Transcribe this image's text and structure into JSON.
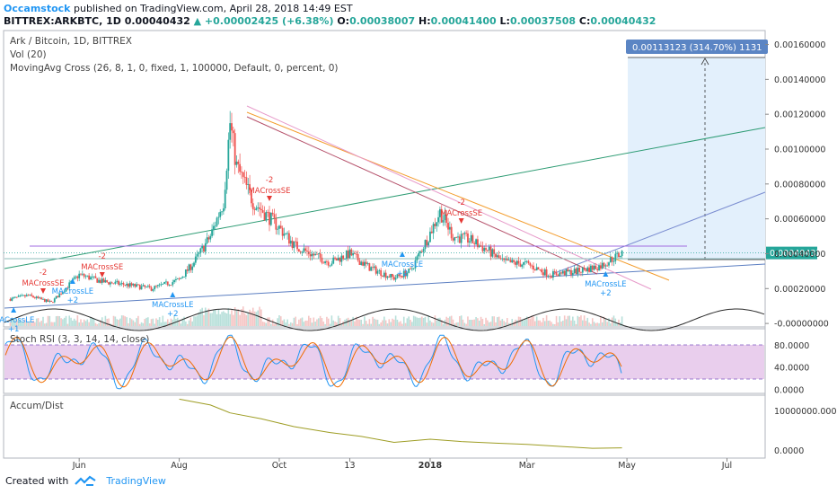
{
  "header": {
    "author": "Occamstock",
    "published": "published on TradingView.com, April 28, 2018 14:49 EST",
    "symbol": "BITTREX:ARKBTC, 1D",
    "last": "0.00040432",
    "change": "▲ +0.00002425 (+6.38%)",
    "o_label": "O:",
    "o": "0.00038007",
    "h_label": "H:",
    "h": "0.00041400",
    "l_label": "L:",
    "l": "0.00037508",
    "c_label": "C:",
    "c": "0.00040432"
  },
  "legends": {
    "main": "Ark / Bitcoin, 1D, BITTREX",
    "vol": "Vol (20)",
    "macross": "MovingAvg Cross (26, 8, 1, 0, fixed, 1, 100000, Default, 0, percent, 0)",
    "stoch": "Stoch RSI (3, 3, 14, 14, close)",
    "accum": "Accum/Dist"
  },
  "measure_label": "0.00113123 (314.70%) 1131",
  "price_badge": "0.00040432",
  "colors": {
    "up": "#26a69a",
    "down": "#ef5350",
    "signal_buy": "#2196f3",
    "signal_sell": "#e53935",
    "stoch_fill": "#e1bee7",
    "accum": "#9e9d24",
    "badge": "#26a69a",
    "measure": "#5b85c4"
  },
  "footer": {
    "created": "Created with",
    "brand": "TradingView"
  },
  "chart_data": [
    {
      "type": "candlestick",
      "title": "Ark / Bitcoin, 1D, BITTREX",
      "x": [
        "2017-04-20",
        "2017-05-01",
        "2017-05-15",
        "2017-06-01",
        "2017-06-15",
        "2017-07-01",
        "2017-07-15",
        "2017-08-01",
        "2017-08-10",
        "2017-08-20",
        "2017-08-28",
        "2017-09-01",
        "2017-09-05",
        "2017-09-15",
        "2017-10-01",
        "2017-10-10",
        "2017-10-20",
        "2017-11-01",
        "2017-11-13",
        "2017-11-25",
        "2017-12-10",
        "2017-12-20",
        "2017-12-31",
        "2018-01-07",
        "2018-01-15",
        "2018-01-25",
        "2018-02-05",
        "2018-02-15",
        "2018-03-01",
        "2018-03-15",
        "2018-04-01",
        "2018-04-15",
        "2018-04-28"
      ],
      "close": [
        0.00014,
        0.00016,
        0.00012,
        0.00028,
        0.00024,
        0.00022,
        0.0002,
        0.00025,
        0.00035,
        0.0005,
        0.0007,
        0.00115,
        0.0009,
        0.0007,
        0.00055,
        0.00045,
        0.0004,
        0.00035,
        0.0004,
        0.00032,
        0.00026,
        0.0003,
        0.0005,
        0.00064,
        0.0005,
        0.00048,
        0.00042,
        0.00035,
        0.00034,
        0.00028,
        0.0003,
        0.00033,
        0.00040432
      ],
      "xaxis_ticks": [
        "Jun",
        "Aug",
        "Oct",
        "13",
        "2018",
        "Mar",
        "May",
        "Jul"
      ],
      "yaxis_ticks": [
        "0.00160000",
        "0.00140000",
        "0.00120000",
        "0.00100000",
        "0.00080000",
        "0.00060000",
        "0.00040000",
        "0.00020000",
        "-0.00000000"
      ],
      "ylim": [
        -2e-05,
        0.00168
      ],
      "last_price": 0.00040432,
      "signals": [
        {
          "label": "MACrossLE",
          "qty": "+1",
          "side": "buy",
          "x": "2017-04-22"
        },
        {
          "label": "MACrossSE",
          "qty": "-2",
          "side": "sell",
          "x": "2017-05-10"
        },
        {
          "label": "MACrossLE",
          "qty": "+2",
          "side": "buy",
          "x": "2017-05-28"
        },
        {
          "label": "MACrossSE",
          "qty": "-2",
          "side": "sell",
          "x": "2017-06-15"
        },
        {
          "label": "MACrossLE",
          "qty": "+2",
          "side": "buy",
          "x": "2017-07-28"
        },
        {
          "label": "MACrossSE",
          "qty": "-2",
          "side": "sell",
          "x": "2017-09-25"
        },
        {
          "label": "MACrossLE",
          "qty": "+2",
          "side": "buy",
          "x": "2017-12-15"
        },
        {
          "label": "MACrossSE",
          "qty": "-2",
          "side": "sell",
          "x": "2018-01-20"
        },
        {
          "label": "MACrossLE",
          "qty": "+2",
          "side": "buy",
          "x": "2018-04-18"
        }
      ],
      "measure": {
        "label": "0.00113123 (314.70%) 1131"
      }
    },
    {
      "type": "line",
      "title": "Stoch RSI (3, 3, 14, 14, close)",
      "yaxis_ticks": [
        "80.0000",
        "40.0000",
        "0.0000"
      ],
      "ylim": [
        0,
        100
      ],
      "bands": [
        20,
        80
      ]
    },
    {
      "type": "line",
      "title": "Accum/Dist",
      "yaxis_ticks": [
        "10000000.0000",
        "0.0000"
      ],
      "ylim": [
        -2000000,
        14000000
      ],
      "x": [
        "2017-08-01",
        "2017-08-20",
        "2017-09-01",
        "2017-09-20",
        "2017-10-10",
        "2017-11-01",
        "2017-11-20",
        "2017-12-10",
        "2018-01-01",
        "2018-01-20",
        "2018-02-10",
        "2018-03-01",
        "2018-03-20",
        "2018-04-10",
        "2018-04-28"
      ],
      "values": [
        13000000,
        11500000,
        9500000,
        8000000,
        6000000,
        4500000,
        3500000,
        2000000,
        2800000,
        2200000,
        1800000,
        1500000,
        1000000,
        500000,
        600000
      ]
    }
  ]
}
